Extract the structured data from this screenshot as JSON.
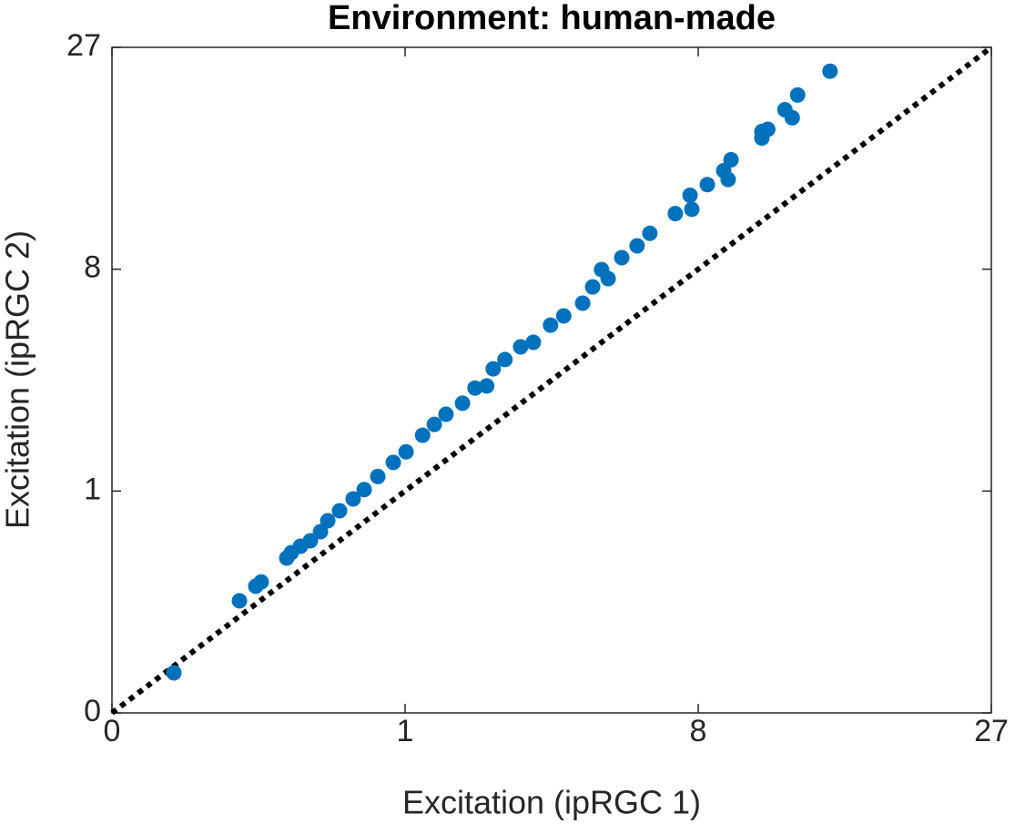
{
  "chart_data": {
    "type": "scatter",
    "title": "Environment: human-made",
    "x_label": "Excitation (ipRGC 1)",
    "y_label": "Excitation (ipRGC 2)",
    "scale": "cube-root",
    "diagonal": true,
    "color": "#0072bd",
    "xlim": [
      0,
      27
    ],
    "ylim": [
      0,
      27
    ],
    "xticks": [
      0,
      1,
      8,
      27
    ],
    "yticks": [
      0,
      1,
      8,
      27
    ],
    "x": [
      0.00942,
      0.0822,
      0.118,
      0.132,
      0.212,
      0.229,
      0.266,
      0.31,
      0.36,
      0.399,
      0.468,
      0.557,
      0.637,
      0.746,
      0.884,
      1.01,
      1.19,
      1.33,
      1.48,
      1.71,
      1.9,
      2.09,
      2.2,
      2.41,
      2.71,
      2.97,
      3.35,
      3.66,
      4.14,
      4.41,
      4.66,
      4.85,
      5.26,
      5.75,
      6.18,
      7.1,
      7.67,
      7.74,
      8.38,
      9.09,
      9.29,
      9.42,
      10.9,
      10.9,
      11.2,
      12.1,
      12.5,
      12.8,
      14.7
    ],
    "values": [
      0.00589,
      0.129,
      0.186,
      0.206,
      0.34,
      0.377,
      0.424,
      0.467,
      0.545,
      0.649,
      0.756,
      0.897,
      1.02,
      1.21,
      1.44,
      1.63,
      1.96,
      2.2,
      2.44,
      2.72,
      3.14,
      3.2,
      3.73,
      4.04,
      4.49,
      4.66,
      5.34,
      5.73,
      6.3,
      7.08,
      7.98,
      7.5,
      8.64,
      9.33,
      10.1,
      11.4,
      12.7,
      11.7,
      13.5,
      14.6,
      13.9,
      15.5,
      18.0,
      17.4,
      18.2,
      20.1,
      19.3,
      21.6,
      24.2
    ]
  }
}
